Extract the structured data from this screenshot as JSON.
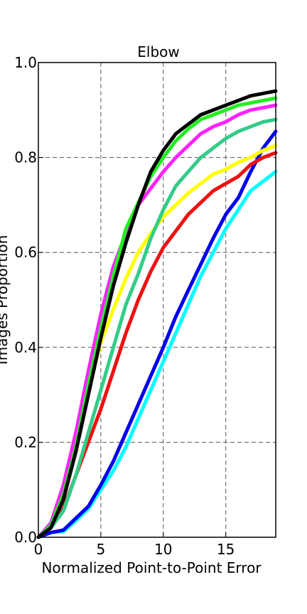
{
  "chart_data": {
    "type": "line",
    "title": "Elbow",
    "xlabel": "Normalized Point-to-Point Error",
    "ylabel": "Images Proportion",
    "xlim": [
      0,
      19
    ],
    "ylim": [
      0,
      1.0
    ],
    "xticks": [
      0,
      5,
      10,
      15
    ],
    "yticks": [
      0.0,
      0.2,
      0.4,
      0.6,
      0.8,
      1.0
    ],
    "grid": true,
    "x": [
      0,
      1,
      2,
      3,
      4,
      5,
      6,
      7,
      8,
      9,
      10,
      11,
      12,
      13,
      14,
      15,
      16,
      17,
      18,
      19
    ],
    "series": [
      {
        "color": "#00ffff",
        "values": [
          0.0,
          0.01,
          0.012,
          0.035,
          0.06,
          0.1,
          0.14,
          0.19,
          0.25,
          0.31,
          0.37,
          0.43,
          0.49,
          0.55,
          0.6,
          0.65,
          0.69,
          0.73,
          0.75,
          0.77
        ]
      },
      {
        "color": "#0000ee",
        "values": [
          0.0,
          0.01,
          0.015,
          0.04,
          0.065,
          0.11,
          0.16,
          0.22,
          0.28,
          0.34,
          0.4,
          0.465,
          0.52,
          0.575,
          0.63,
          0.68,
          0.715,
          0.77,
          0.82,
          0.855
        ]
      },
      {
        "color": "#ee1111",
        "values": [
          0.0,
          0.02,
          0.06,
          0.13,
          0.2,
          0.27,
          0.35,
          0.43,
          0.5,
          0.56,
          0.61,
          0.645,
          0.68,
          0.705,
          0.73,
          0.745,
          0.76,
          0.785,
          0.8,
          0.81
        ]
      },
      {
        "color": "#ffff00",
        "values": [
          0.0,
          0.025,
          0.09,
          0.2,
          0.31,
          0.41,
          0.48,
          0.545,
          0.6,
          0.64,
          0.675,
          0.7,
          0.725,
          0.745,
          0.765,
          0.775,
          0.79,
          0.8,
          0.815,
          0.825
        ]
      },
      {
        "color": "#33cc88",
        "values": [
          0.0,
          0.02,
          0.055,
          0.13,
          0.22,
          0.31,
          0.4,
          0.49,
          0.555,
          0.63,
          0.69,
          0.74,
          0.77,
          0.8,
          0.82,
          0.84,
          0.855,
          0.865,
          0.875,
          0.88
        ]
      },
      {
        "color": "#ff22ff",
        "values": [
          0.0,
          0.03,
          0.11,
          0.22,
          0.35,
          0.47,
          0.57,
          0.64,
          0.7,
          0.735,
          0.77,
          0.8,
          0.825,
          0.85,
          0.865,
          0.875,
          0.89,
          0.9,
          0.905,
          0.91
        ]
      },
      {
        "color": "#22ee22",
        "values": [
          0.0,
          0.025,
          0.09,
          0.19,
          0.32,
          0.44,
          0.55,
          0.65,
          0.705,
          0.76,
          0.8,
          0.835,
          0.86,
          0.88,
          0.89,
          0.9,
          0.91,
          0.915,
          0.92,
          0.925
        ]
      },
      {
        "color": "#000000",
        "values": [
          0.0,
          0.02,
          0.08,
          0.18,
          0.3,
          0.42,
          0.53,
          0.62,
          0.7,
          0.77,
          0.815,
          0.85,
          0.87,
          0.89,
          0.9,
          0.91,
          0.92,
          0.93,
          0.935,
          0.94
        ]
      }
    ]
  }
}
